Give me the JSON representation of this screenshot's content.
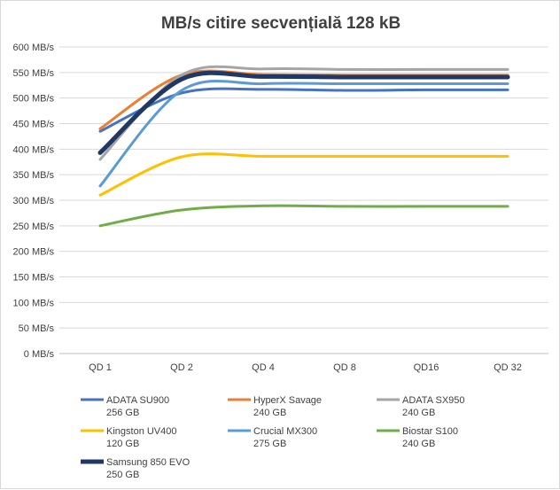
{
  "chart_data": {
    "type": "line",
    "title": "MB/s  citire secvențială  128 kB",
    "xlabel": "",
    "ylabel": "",
    "categories": [
      "QD 1",
      "QD 2",
      "QD 4",
      "QD 8",
      "QD16",
      "QD 32"
    ],
    "y_ticks": [
      "0 MB/s",
      "50 MB/s",
      "100 MB/s",
      "150 MB/s",
      "200 MB/s",
      "250 MB/s",
      "300 MB/s",
      "350 MB/s",
      "400 MB/s",
      "450 MB/s",
      "500 MB/s",
      "550 MB/s",
      "600 MB/s"
    ],
    "ylim": [
      0,
      600
    ],
    "grid": true,
    "legend_position": "bottom",
    "series": [
      {
        "name": "ADATA SU900",
        "capacity": "256 GB",
        "color": "#4472C4",
        "width": 3,
        "values": [
          435,
          510,
          517,
          515,
          516,
          516
        ]
      },
      {
        "name": "HyperX Savage",
        "capacity": "240 GB",
        "color": "#ED7D31",
        "width": 3,
        "values": [
          440,
          545,
          546,
          545,
          545,
          545
        ]
      },
      {
        "name": "ADATA SX950",
        "capacity": "240 GB",
        "color": "#A5A5A5",
        "width": 3,
        "values": [
          380,
          545,
          557,
          556,
          556,
          556
        ]
      },
      {
        "name": "Kingston UV400",
        "capacity": "120 GB",
        "color": "#FFC000",
        "width": 3,
        "values": [
          310,
          385,
          386,
          386,
          386,
          386
        ]
      },
      {
        "name": "Crucial MX300",
        "capacity": "275 GB",
        "color": "#5B9BD5",
        "width": 3,
        "values": [
          328,
          515,
          528,
          528,
          528,
          528
        ]
      },
      {
        "name": "Biostar S100",
        "capacity": "240 GB",
        "color": "#70AD47",
        "width": 3,
        "values": [
          250,
          281,
          289,
          288,
          288,
          288
        ]
      },
      {
        "name": "Samsung 850 EVO",
        "capacity": "250 GB",
        "color": "#203864",
        "width": 5,
        "values": [
          393,
          537,
          542,
          541,
          541,
          541
        ]
      }
    ]
  }
}
